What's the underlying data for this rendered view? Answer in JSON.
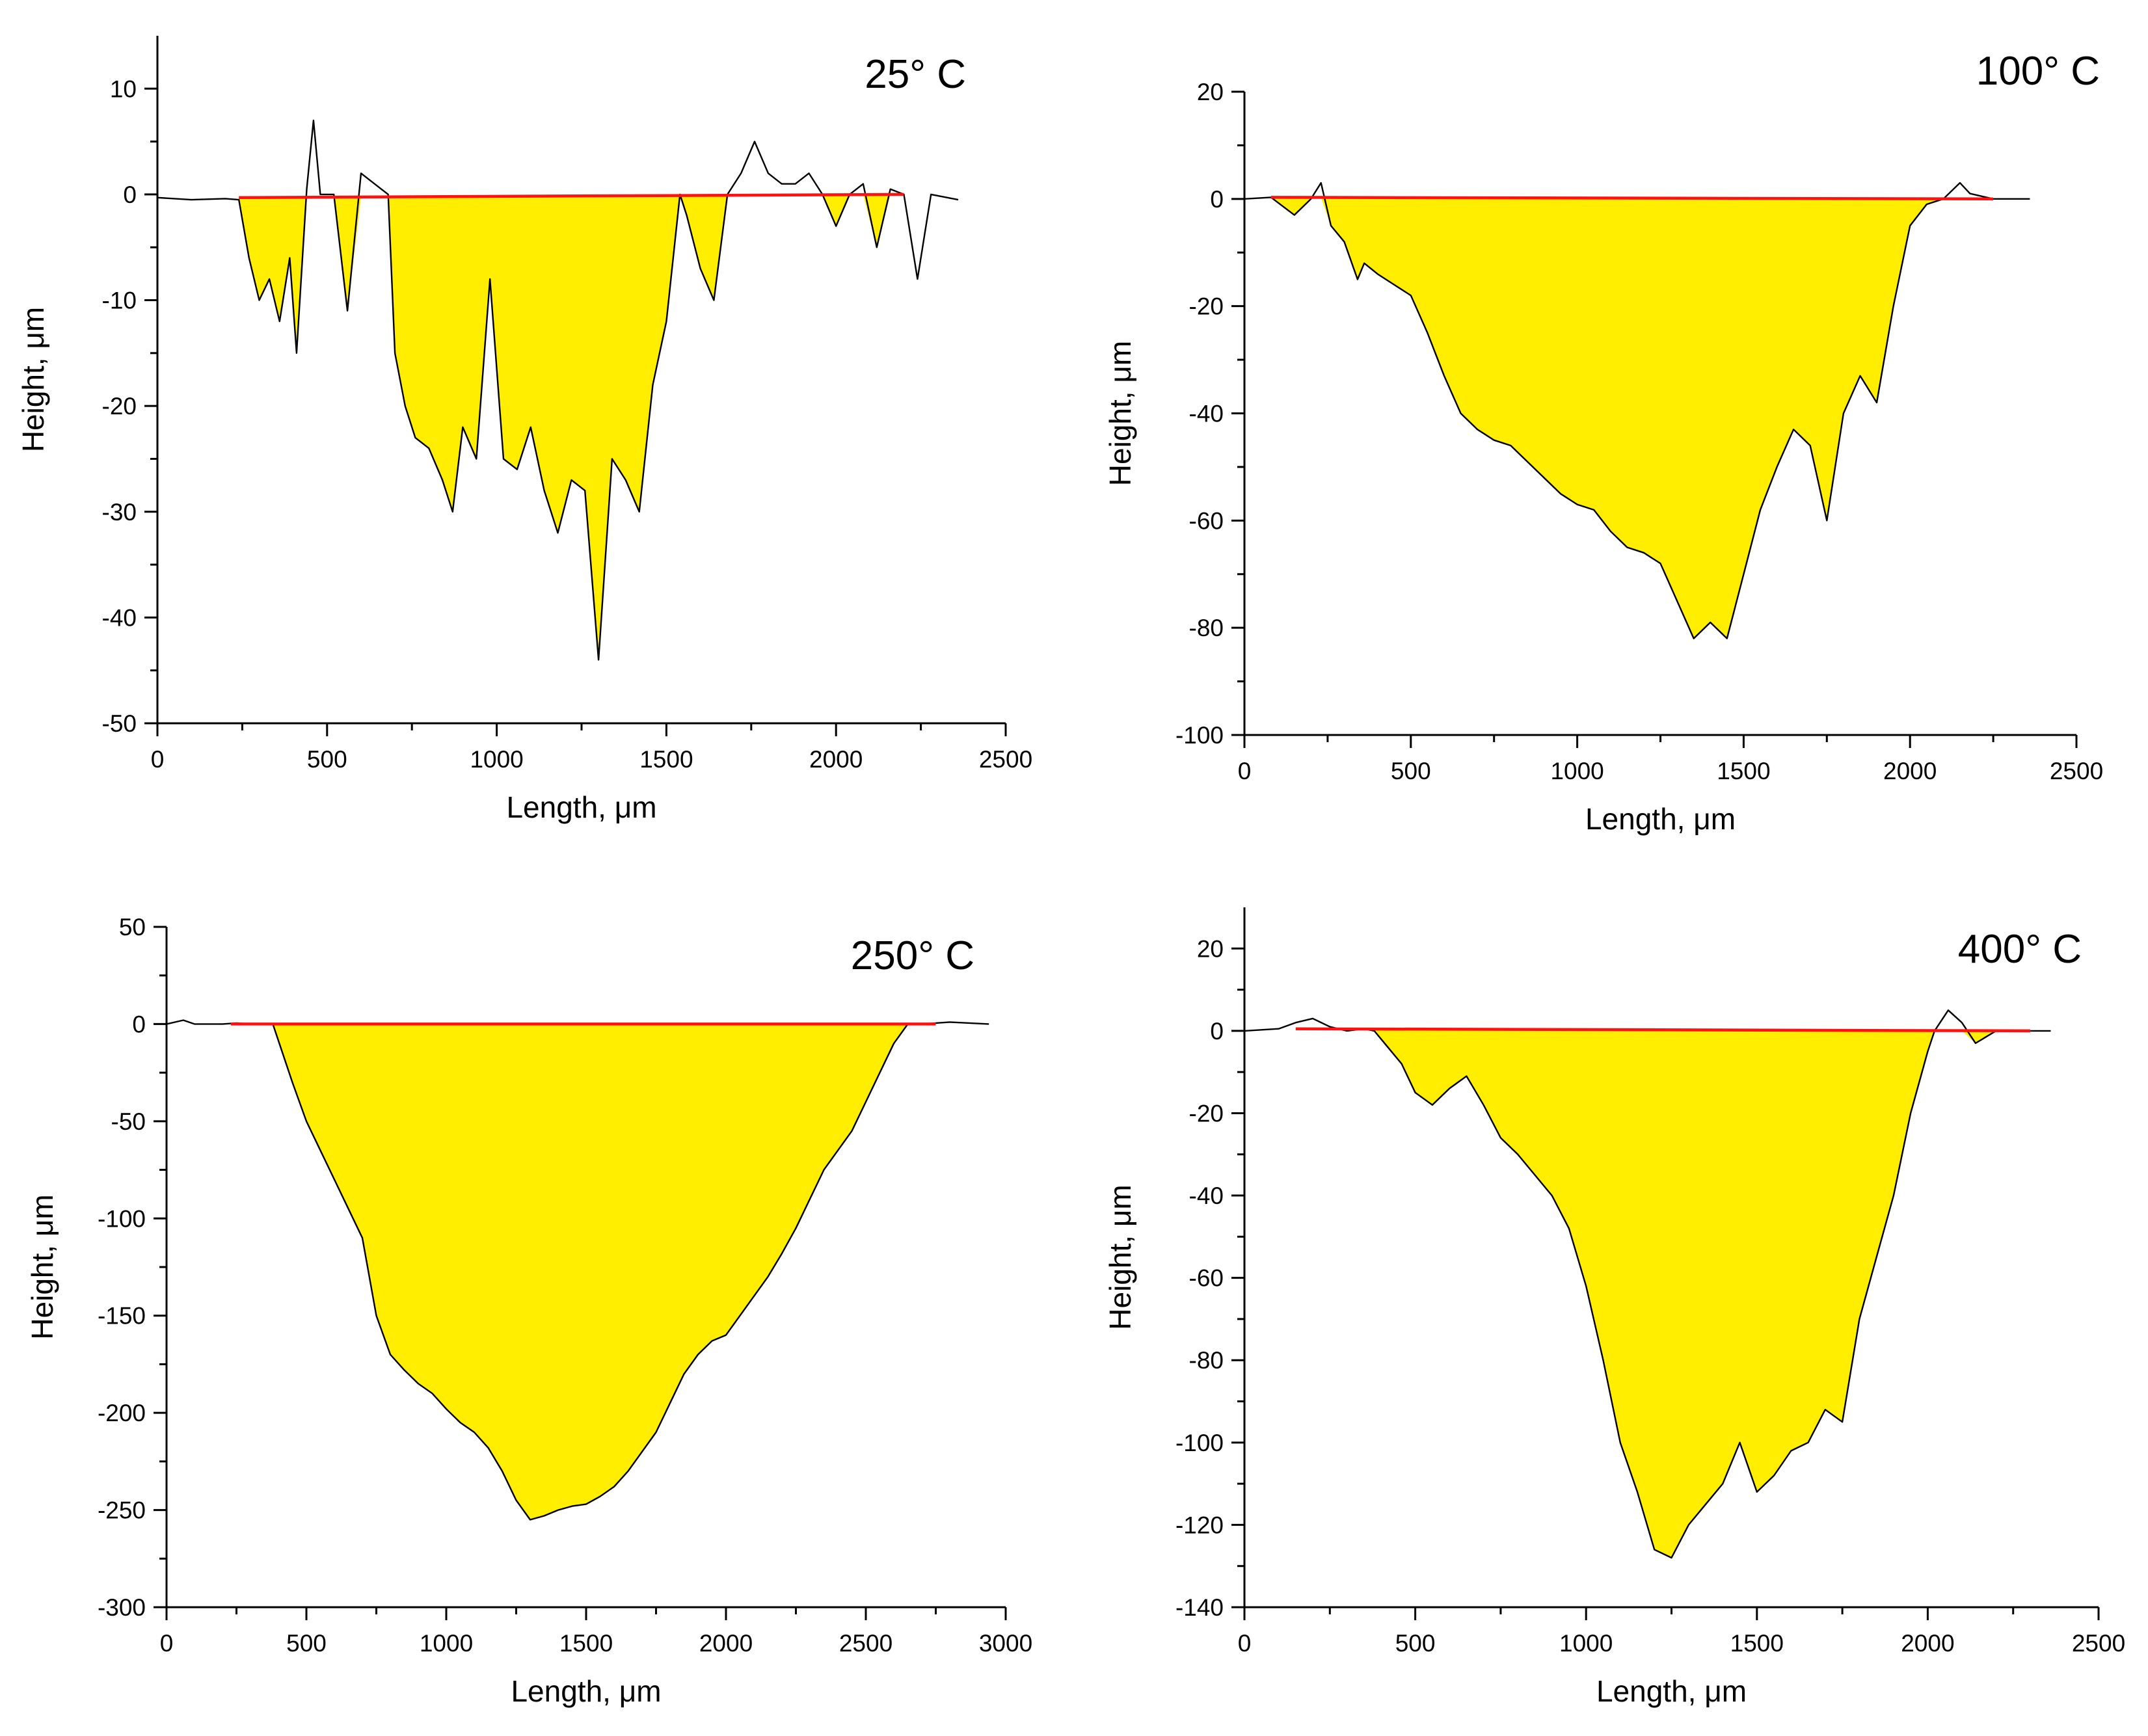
{
  "chart_data": [
    {
      "type": "area",
      "title": "25° C",
      "xlabel": "Length, μm",
      "ylabel": "Height, μm",
      "xlim": [
        0,
        2500
      ],
      "ylim": [
        -50,
        15
      ],
      "xticks": [
        0,
        500,
        1000,
        1500,
        2000,
        2500
      ],
      "yticks": [
        10,
        0,
        -10,
        -20,
        -30,
        -40,
        -50
      ],
      "series": [
        {
          "name": "profile",
          "x": [
            0,
            100,
            200,
            240,
            270,
            300,
            330,
            360,
            390,
            410,
            440,
            460,
            480,
            520,
            560,
            600,
            640,
            680,
            700,
            730,
            760,
            800,
            840,
            870,
            900,
            940,
            980,
            1020,
            1060,
            1100,
            1140,
            1180,
            1220,
            1260,
            1300,
            1340,
            1380,
            1420,
            1460,
            1500,
            1540,
            1560,
            1600,
            1640,
            1680,
            1720,
            1760,
            1800,
            1840,
            1880,
            1920,
            1960,
            2000,
            2040,
            2080,
            2120,
            2160,
            2200,
            2240,
            2280,
            2360
          ],
          "y": [
            -0.3,
            -0.5,
            -0.4,
            -0.5,
            -6,
            -10,
            -8,
            -12,
            -6,
            -15,
            0.5,
            7,
            0,
            0,
            -11,
            2,
            1,
            0,
            -15,
            -20,
            -23,
            -24,
            -27,
            -30,
            -22,
            -25,
            -8,
            -25,
            -26,
            -22,
            -28,
            -32,
            -27,
            -28,
            -44,
            -25,
            -27,
            -30,
            -18,
            -12,
            0,
            -2,
            -7,
            -10,
            0,
            2,
            5,
            2,
            1,
            1,
            2,
            0,
            -3,
            0,
            1,
            -5,
            0.5,
            0,
            -8,
            0,
            -0.5
          ]
        },
        {
          "name": "reference line",
          "x": [
            240,
            2200
          ],
          "y": [
            -0.3,
            0
          ]
        }
      ]
    },
    {
      "type": "area",
      "title": "100° C",
      "xlabel": "Length, μm",
      "ylabel": "Height, μm",
      "xlim": [
        0,
        2500
      ],
      "ylim": [
        -100,
        20
      ],
      "xticks": [
        0,
        500,
        1000,
        1500,
        2000,
        2500
      ],
      "yticks": [
        20,
        0,
        -20,
        -40,
        -60,
        -80,
        -100
      ],
      "series": [
        {
          "name": "profile",
          "x": [
            0,
            80,
            150,
            200,
            230,
            260,
            300,
            340,
            360,
            400,
            450,
            500,
            550,
            600,
            650,
            700,
            750,
            800,
            850,
            900,
            950,
            1000,
            1050,
            1100,
            1150,
            1200,
            1250,
            1300,
            1350,
            1400,
            1450,
            1500,
            1550,
            1600,
            1650,
            1700,
            1750,
            1800,
            1850,
            1900,
            1950,
            2000,
            2050,
            2100,
            2150,
            2180,
            2250,
            2360
          ],
          "y": [
            0,
            0.3,
            -3,
            0,
            3,
            -5,
            -8,
            -15,
            -12,
            -14,
            -16,
            -18,
            -25,
            -33,
            -40,
            -43,
            -45,
            -46,
            -49,
            -52,
            -55,
            -57,
            -58,
            -62,
            -65,
            -66,
            -68,
            -75,
            -82,
            -79,
            -82,
            -70,
            -58,
            -50,
            -43,
            -46,
            -60,
            -40,
            -33,
            -38,
            -20,
            -5,
            -1,
            0,
            3,
            1,
            0,
            0
          ]
        },
        {
          "name": "reference line",
          "x": [
            80,
            2250
          ],
          "y": [
            0.3,
            0
          ]
        }
      ]
    },
    {
      "type": "area",
      "title": "250° C",
      "xlabel": "Length, μm",
      "ylabel": "Height, μm",
      "xlim": [
        0,
        3000
      ],
      "ylim": [
        -300,
        50
      ],
      "xticks": [
        0,
        500,
        1000,
        1500,
        2000,
        2500,
        3000
      ],
      "yticks": [
        50,
        0,
        -50,
        -100,
        -150,
        -200,
        -250,
        -300
      ],
      "series": [
        {
          "name": "profile",
          "x": [
            0,
            60,
            100,
            200,
            250,
            300,
            380,
            450,
            500,
            550,
            600,
            650,
            700,
            750,
            800,
            850,
            900,
            950,
            1000,
            1050,
            1100,
            1150,
            1200,
            1250,
            1300,
            1350,
            1400,
            1450,
            1500,
            1550,
            1600,
            1650,
            1700,
            1750,
            1800,
            1850,
            1900,
            1950,
            2000,
            2050,
            2100,
            2150,
            2200,
            2250,
            2300,
            2350,
            2400,
            2450,
            2500,
            2550,
            2600,
            2650,
            2700,
            2800,
            2940
          ],
          "y": [
            0,
            2,
            0,
            0,
            0.5,
            0,
            0,
            -30,
            -50,
            -65,
            -80,
            -95,
            -110,
            -150,
            -170,
            -178,
            -185,
            -190,
            -198,
            -205,
            -210,
            -218,
            -230,
            -245,
            -255,
            -253,
            -250,
            -248,
            -247,
            -243,
            -238,
            -230,
            -220,
            -210,
            -195,
            -180,
            -170,
            -163,
            -160,
            -150,
            -140,
            -130,
            -118,
            -105,
            -90,
            -75,
            -65,
            -55,
            -40,
            -25,
            -10,
            0,
            0,
            1,
            0
          ]
        },
        {
          "name": "reference line",
          "x": [
            230,
            2750
          ],
          "y": [
            0,
            0
          ]
        }
      ]
    },
    {
      "type": "area",
      "title": "400° C",
      "xlabel": "Length, μm",
      "ylabel": "Height, μm",
      "xlim": [
        0,
        2500
      ],
      "ylim": [
        -140,
        30
      ],
      "xticks": [
        0,
        500,
        1000,
        1500,
        2000,
        2500
      ],
      "yticks": [
        20,
        0,
        -20,
        -40,
        -60,
        -80,
        -100,
        -120,
        -140
      ],
      "series": [
        {
          "name": "profile",
          "x": [
            0,
            100,
            150,
            200,
            250,
            300,
            350,
            380,
            420,
            460,
            500,
            550,
            600,
            650,
            700,
            750,
            800,
            850,
            900,
            950,
            1000,
            1050,
            1100,
            1150,
            1200,
            1250,
            1300,
            1350,
            1400,
            1450,
            1500,
            1550,
            1600,
            1650,
            1700,
            1750,
            1800,
            1850,
            1900,
            1950,
            2000,
            2020,
            2060,
            2100,
            2140,
            2200,
            2360
          ],
          "y": [
            0,
            0.5,
            2,
            3,
            1,
            0,
            0.5,
            0,
            -4,
            -8,
            -15,
            -18,
            -14,
            -11,
            -18,
            -26,
            -30,
            -35,
            -40,
            -48,
            -62,
            -80,
            -100,
            -112,
            -126,
            -128,
            -120,
            -115,
            -110,
            -100,
            -112,
            -108,
            -102,
            -100,
            -92,
            -95,
            -70,
            -55,
            -40,
            -20,
            -5,
            0,
            5,
            2,
            -3,
            0,
            0
          ]
        },
        {
          "name": "reference line",
          "x": [
            150,
            2300
          ],
          "y": [
            0.5,
            0
          ]
        }
      ]
    }
  ]
}
